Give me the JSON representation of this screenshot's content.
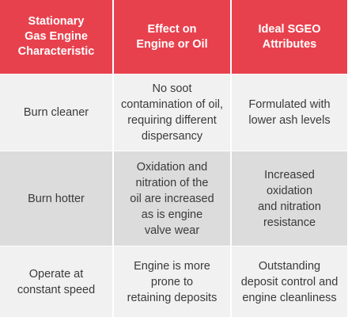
{
  "table": {
    "headers": [
      "Stationary\nGas Engine\nCharacteristic",
      "Effect on\nEngine or Oil",
      "Ideal SGEO\nAttributes"
    ],
    "rows": [
      [
        "Burn cleaner",
        "No soot\ncontamination of oil,\nrequiring different\ndispersancy",
        "Formulated with\nlower ash levels"
      ],
      [
        "Burn hotter",
        "Oxidation and\nnitration of the\noil are increased\nas is engine\nvalve wear",
        "Increased\noxidation\nand nitration\nresistance"
      ],
      [
        "Operate at\nconstant speed",
        "Engine is more\nprone to\nretaining deposits",
        "Outstanding\ndeposit control and\nengine cleanliness"
      ]
    ]
  },
  "colors": {
    "header_bg": "#e8414e",
    "header_text": "#ffffff",
    "row_light": "#f1f1f1",
    "row_dark": "#dcdcdc",
    "body_text": "#3a3a3a"
  }
}
